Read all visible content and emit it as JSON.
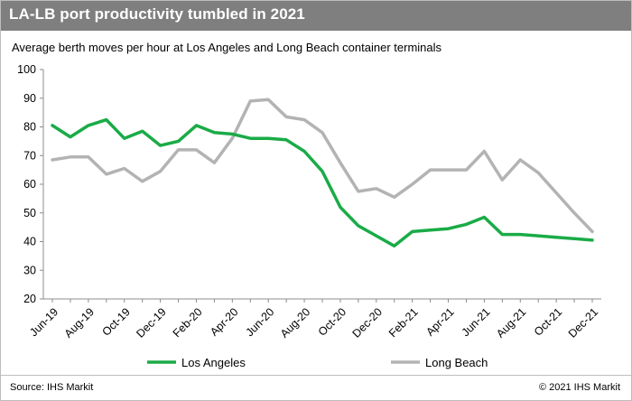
{
  "header": {
    "title": "LA-LB port productivity tumbled in 2021"
  },
  "footer": {
    "source": "Source: IHS Markit",
    "copyright": "© 2021 IHS Markit"
  },
  "colors": {
    "header_bg": "#7f7f7f",
    "los_angeles": "#1aab47",
    "long_beach": "#b3b3b3"
  },
  "chart_data": {
    "type": "line",
    "title": "Average berth moves per hour at Los Angeles and Long Beach container terminals",
    "xlabel": "",
    "ylabel": "",
    "ylim": [
      20,
      100
    ],
    "yticks": [
      20,
      30,
      40,
      50,
      60,
      70,
      80,
      90,
      100
    ],
    "grid": false,
    "legend_position": "bottom",
    "x": [
      "Jun-19",
      "Jul-19",
      "Aug-19",
      "Sep-19",
      "Oct-19",
      "Nov-19",
      "Dec-19",
      "Jan-20",
      "Feb-20",
      "Mar-20",
      "Apr-20",
      "May-20",
      "Jun-20",
      "Jul-20",
      "Aug-20",
      "Sep-20",
      "Oct-20",
      "Nov-20",
      "Dec-20",
      "Jan-21",
      "Feb-21",
      "Mar-21",
      "Apr-21",
      "May-21",
      "Jun-21",
      "Jul-21",
      "Aug-21",
      "Sep-21",
      "Oct-21",
      "Nov-21",
      "Dec-21"
    ],
    "xtick_labels": [
      "Jun-19",
      "Aug-19",
      "Oct-19",
      "Dec-19",
      "Feb-20",
      "Apr-20",
      "Jun-20",
      "Aug-20",
      "Oct-20",
      "Dec-20",
      "Feb-21",
      "Apr-21",
      "Jun-21",
      "Aug-21",
      "Oct-21",
      "Dec-21"
    ],
    "series": [
      {
        "name": "Los Angeles",
        "values": [
          80.5,
          76.5,
          80.5,
          82.5,
          76,
          78.5,
          73.5,
          75,
          80.5,
          78,
          77.5,
          76,
          76,
          75.5,
          71.5,
          64.5,
          52,
          45.5,
          42,
          38.5,
          43.5,
          44,
          44.5,
          46,
          48.5,
          42.5,
          42.5,
          42,
          41.5,
          41,
          40.5
        ]
      },
      {
        "name": "Long Beach",
        "values": [
          68.5,
          69.5,
          69.5,
          63.5,
          65.5,
          61,
          64.5,
          72,
          72,
          67.5,
          76,
          89,
          89.5,
          83.5,
          82.5,
          78,
          67.5,
          57.5,
          58.5,
          55.5,
          60,
          65,
          65,
          65,
          71.5,
          61.5,
          68.5,
          64,
          57,
          50,
          43.5
        ]
      }
    ]
  }
}
